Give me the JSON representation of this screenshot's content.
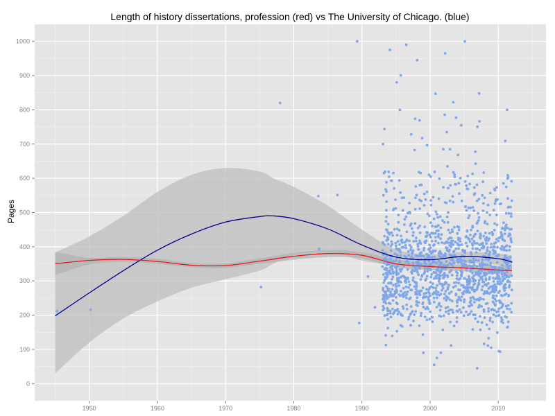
{
  "chart_data": {
    "type": "scatter",
    "title": "Length of history dissertations, profession (red) vs The University of Chicago. (blue)",
    "xlabel": "",
    "ylabel": "Pages",
    "xlim": [
      1942,
      2017
    ],
    "ylim": [
      -50,
      1050
    ],
    "xticks": [
      1950,
      1960,
      1970,
      1980,
      1990,
      2000,
      2010
    ],
    "yticks": [
      0,
      100,
      200,
      300,
      400,
      500,
      600,
      700,
      800,
      900,
      1000
    ],
    "grid": true,
    "colors": {
      "panel": "#e5e5e5",
      "grid_major": "#ffffff",
      "grid_minor": "#f2f2f2",
      "points": "#7fa6e6",
      "band": "#bebebe",
      "profession_line": "#e31a1c",
      "chicago_line": "#00008b"
    },
    "series": [
      {
        "type": "scatter",
        "points_sparse": [
          [
            1945.3,
            212
          ],
          [
            1950.2,
            216
          ],
          [
            1975.2,
            282
          ],
          [
            1978.0,
            820
          ],
          [
            1983.6,
            548
          ],
          [
            1983.7,
            393
          ],
          [
            1986.4,
            551
          ],
          [
            1989.3,
            1000
          ],
          [
            1989.6,
            177
          ],
          [
            1990.9,
            313
          ],
          [
            1991.9,
            223
          ],
          [
            1993.1,
            700
          ],
          [
            1994.1,
            975
          ],
          [
            1996.5,
            990
          ],
          [
            1998.1,
            945
          ],
          [
            2002.2,
            965
          ],
          [
            2005.1,
            1000
          ],
          [
            2000.8,
            847
          ],
          [
            2003.4,
            822
          ],
          [
            2011.3,
            800
          ],
          [
            2007.2,
            848
          ],
          [
            1995.1,
            880
          ],
          [
            1995.7,
            901
          ],
          [
            2000.6,
            55
          ],
          [
            2001.0,
            75
          ],
          [
            2006.9,
            45
          ],
          [
            2010.1,
            95
          ]
        ],
        "dense_cloud": {
          "x_range": [
            1993,
            2012
          ],
          "core_range": [
            180,
            620
          ],
          "median": 330,
          "count": 1400
        }
      },
      {
        "type": "line",
        "smoother": "loess",
        "x": [
          1945,
          1950,
          1955,
          1960,
          1965,
          1970,
          1975,
          1980,
          1985,
          1990,
          1995,
          2000,
          2005,
          2010,
          2012
        ],
        "y": [
          350,
          360,
          363,
          357,
          346,
          345,
          358,
          372,
          380,
          375,
          350,
          342,
          338,
          332,
          330
        ],
        "band_upper": [
          385,
          368,
          370,
          365,
          352,
          352,
          366,
          382,
          390,
          384,
          362,
          352,
          348,
          345,
          348
        ],
        "band_lower": [
          318,
          348,
          356,
          350,
          340,
          338,
          350,
          362,
          370,
          366,
          340,
          332,
          328,
          320,
          314
        ]
      },
      {
        "type": "line",
        "smoother": "loess",
        "x": [
          1945,
          1950,
          1955,
          1960,
          1965,
          1970,
          1975,
          1977,
          1980,
          1985,
          1990,
          1995,
          2000,
          2005,
          2010,
          2012
        ],
        "y": [
          198,
          265,
          330,
          390,
          437,
          472,
          488,
          490,
          482,
          452,
          405,
          370,
          362,
          372,
          365,
          355
        ],
        "band_upper": [
          383,
          430,
          490,
          560,
          610,
          630,
          620,
          600,
          575,
          520,
          450,
          392,
          378,
          385,
          380,
          375
        ],
        "band_lower": [
          30,
          120,
          190,
          240,
          280,
          305,
          330,
          350,
          375,
          385,
          360,
          345,
          345,
          352,
          347,
          328
        ]
      }
    ]
  }
}
